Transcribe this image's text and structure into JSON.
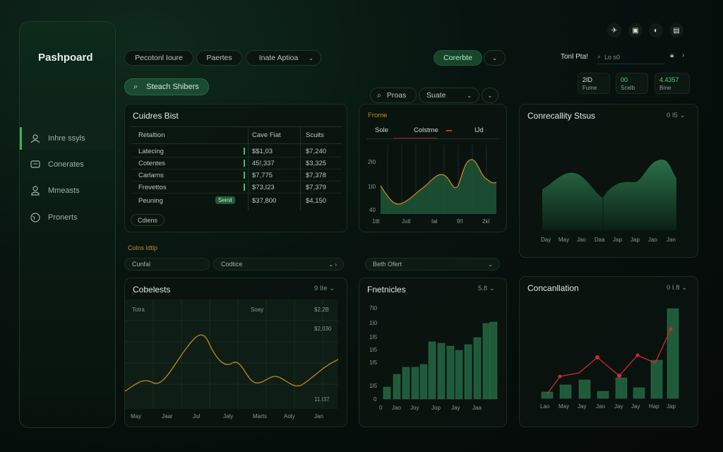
{
  "sidebar": {
    "brand": "Pashpoard",
    "items": [
      {
        "label": "Inhre ssyls",
        "icon": "user-group-icon"
      },
      {
        "label": "Conerates",
        "icon": "chat-icon"
      },
      {
        "label": "Mmeasts",
        "icon": "person-icon"
      },
      {
        "label": "Pronerts",
        "icon": "globe-icon"
      }
    ]
  },
  "header": {
    "tabs": [
      "Pecotonl Ioure",
      "Paertes",
      "Inate Aptioa"
    ],
    "action_button": "Corerbte",
    "user_label": "Tonl Pta!",
    "search_placeholder": "Lo s0",
    "stats": [
      {
        "big": "2ID",
        "small": "Fume"
      },
      {
        "big": "00",
        "small": "Scelb"
      },
      {
        "big": "4.4357",
        "small": "Bme"
      }
    ]
  },
  "search": {
    "label": "Steach Shibers"
  },
  "filters": {
    "search_label": "Proas",
    "select_label": "Suate"
  },
  "table_card": {
    "title": "Cuidres Bist",
    "headers": [
      "Retaltion",
      "Cave Fiat",
      "Scuits"
    ],
    "rows": [
      {
        "name": "Latecing",
        "value": "$$1,03",
        "score": "$7,240"
      },
      {
        "name": "Cotentes",
        "value": "45!,337",
        "score": "$3,325"
      },
      {
        "name": "Carlarns",
        "value": "$7,775",
        "score": "$7,378"
      },
      {
        "name": "Frevettos",
        "value": "$73,I23",
        "score": "$7,379"
      },
      {
        "name": "Peuning",
        "value": "$37,800",
        "score": "$4,150"
      }
    ],
    "tag": "Seinit",
    "footer_button": "Cdiens"
  },
  "line_card": {
    "title": "Frome",
    "legend": [
      "Sole",
      "Colstme",
      "IJd"
    ],
    "y_ticks": [
      "2I0",
      "1I0",
      "40"
    ],
    "x_ticks": [
      "1ttl",
      "Jutl",
      "Ial",
      "9!I",
      "2kl"
    ]
  },
  "status_card": {
    "title": "Conrecallity Stsus",
    "meta": "0 I5",
    "x_ticks": [
      "Day",
      "May",
      "Jao",
      "Daa",
      "Jap",
      "Jap",
      "Jao",
      "Jan"
    ]
  },
  "section_label": "Colns ldtlp",
  "dropdowns": [
    "Cunfal",
    "Codtice",
    "Beth Ofert"
  ],
  "area_card": {
    "title": "Cobelests",
    "meta": "9 IIe",
    "cols": [
      "Totra",
      "Soay",
      "$2,2B"
    ],
    "value2": "$2,030",
    "value3": "11.I37",
    "x_ticks": [
      "May",
      "Jaar",
      "Jul",
      "Jaly",
      "Marts",
      "Aoly",
      "Jan"
    ]
  },
  "bar_card": {
    "title": "Fnetnicles",
    "meta": "5.8",
    "y_ticks": [
      "7I0",
      "1I0",
      "1I5",
      "1I5",
      "1I5",
      "1I5",
      "0"
    ],
    "x_ticks": [
      "0",
      "Jao",
      "Joy",
      "Jop",
      "Jay",
      "Jaa"
    ]
  },
  "combo_card": {
    "title": "Concanllation",
    "meta": "0 I.8",
    "x_ticks": [
      "Lao",
      "May",
      "Jay",
      "Jao",
      "Jay",
      "Jay",
      "Hap",
      "Jap"
    ]
  },
  "colors": {
    "accent": "#36b35a",
    "line": "#c8871d",
    "area": "#1f5a3a",
    "red": "#d42a2a"
  }
}
